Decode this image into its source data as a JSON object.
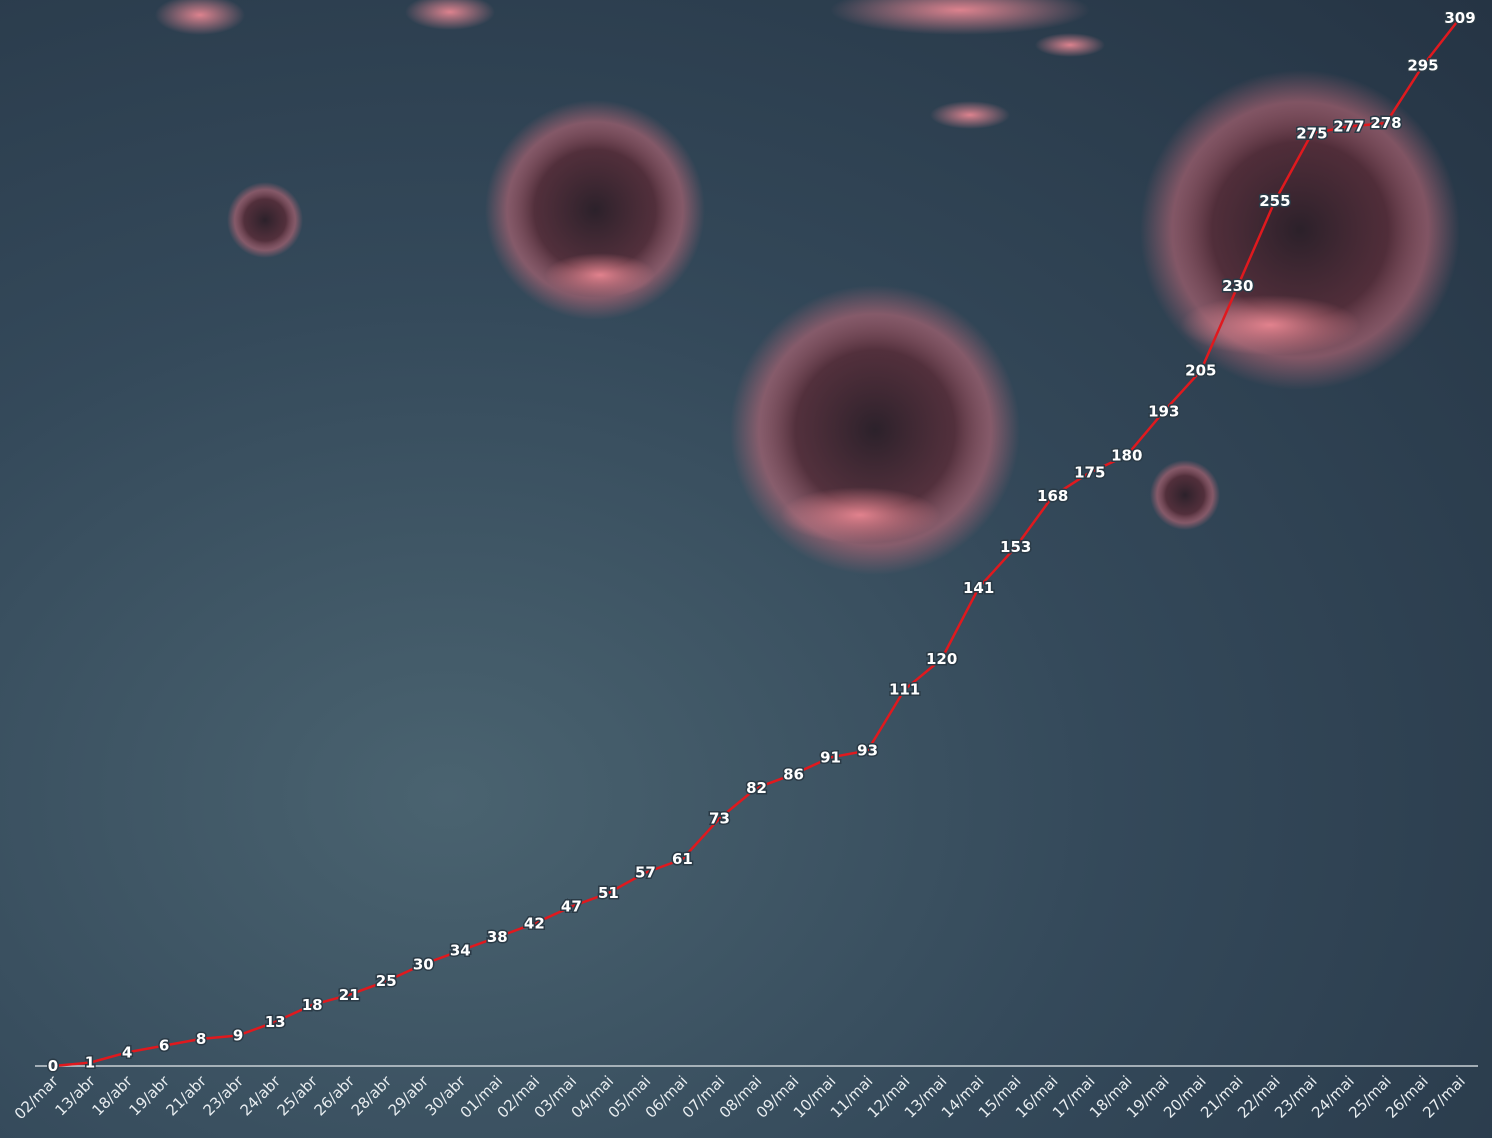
{
  "chart_data": {
    "type": "line",
    "categories": [
      "02/mar",
      "13/abr",
      "18/abr",
      "19/abr",
      "21/abr",
      "23/abr",
      "24/abr",
      "25/abr",
      "26/abr",
      "28/abr",
      "29/abr",
      "30/abr",
      "01/mai",
      "02/mai",
      "03/mai",
      "04/mai",
      "05/mai",
      "06/mai",
      "07/mai",
      "08/mai",
      "09/mai",
      "10/mai",
      "11/mai",
      "12/mai",
      "13/mai",
      "14/mai",
      "15/mai",
      "16/mai",
      "17/mai",
      "18/mai",
      "19/mai",
      "20/mai",
      "21/mai",
      "22/mai",
      "23/mai",
      "24/mai",
      "25/mai",
      "26/mai",
      "27/mai"
    ],
    "values": [
      0,
      1,
      4,
      6,
      8,
      9,
      13,
      18,
      21,
      25,
      30,
      34,
      38,
      42,
      47,
      51,
      57,
      61,
      73,
      82,
      86,
      91,
      93,
      111,
      120,
      141,
      153,
      168,
      175,
      180,
      193,
      205,
      230,
      255,
      275,
      277,
      278,
      295,
      309
    ],
    "ylim": [
      0,
      309
    ],
    "grid": false,
    "line_color": "#e0191e",
    "axis_color": "#c9d1d6",
    "label_color": "#ffffff"
  }
}
